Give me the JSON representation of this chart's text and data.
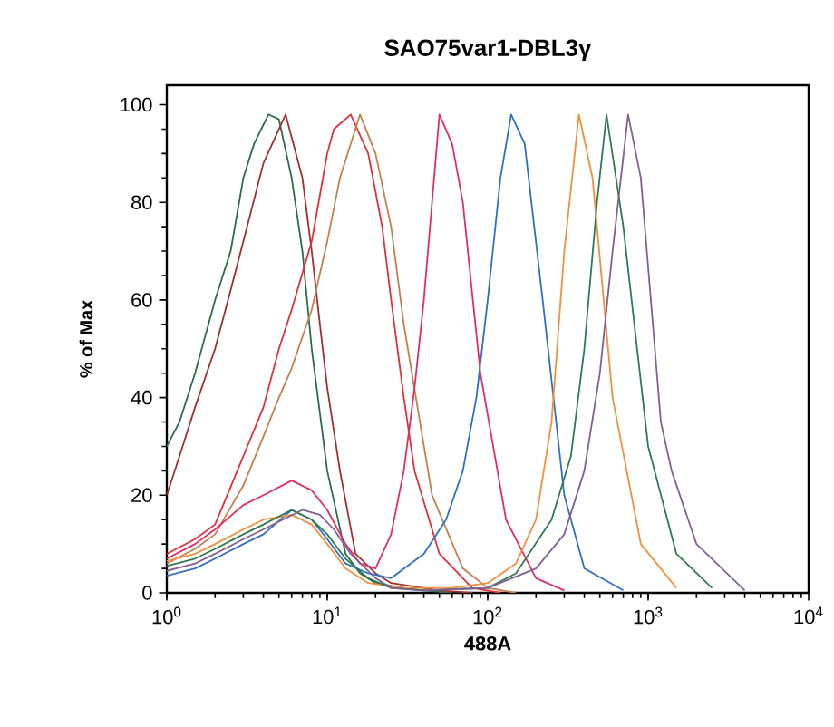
{
  "chart_data": {
    "type": "line",
    "title": "SAO75var1-DBL3γ",
    "xlabel": "488A",
    "ylabel": "% of Max",
    "log": "x",
    "grid": false,
    "marker": "none",
    "line_style": "solid",
    "xlim": [
      1,
      10000
    ],
    "ylim": [
      0,
      104
    ],
    "xticks": [
      {
        "value": 1,
        "label": "10$^{0}$"
      },
      {
        "value": 10,
        "label": "10$^{1}$"
      },
      {
        "value": 100,
        "label": "10$^{2}$"
      },
      {
        "value": 1000,
        "label": "10$^{3}$"
      },
      {
        "value": 10000,
        "label": "10$^{4}$"
      }
    ],
    "yticks": [
      0,
      20,
      40,
      60,
      80,
      100
    ],
    "series": [
      {
        "color": "#2e6b4a",
        "x": [
          1,
          1.2,
          1.5,
          2,
          2.5,
          3,
          3.5,
          4.3,
          5,
          6,
          7,
          8,
          10,
          13,
          16,
          20,
          30,
          40,
          60
        ],
        "values": [
          30,
          35,
          45,
          60,
          70,
          85,
          92,
          98,
          97,
          85,
          70,
          50,
          25,
          8,
          4,
          2,
          1,
          0.5,
          0
        ]
      },
      {
        "color": "#a03030",
        "x": [
          1,
          1.2,
          1.5,
          2,
          2.5,
          3,
          4,
          5.5,
          7,
          8,
          9,
          10,
          12,
          15,
          20,
          25,
          50,
          80
        ],
        "values": [
          20,
          28,
          38,
          50,
          62,
          72,
          88,
          98,
          85,
          70,
          55,
          42,
          25,
          8,
          4,
          2,
          0.5,
          0
        ]
      },
      {
        "color": "#e0303a",
        "x": [
          1,
          1.5,
          2,
          3,
          4,
          5,
          6,
          8,
          10,
          11,
          14,
          18,
          22,
          25,
          30,
          35,
          50,
          80,
          120
        ],
        "values": [
          8,
          11,
          14,
          28,
          38,
          50,
          58,
          72,
          90,
          95,
          98,
          90,
          75,
          60,
          40,
          25,
          8,
          1,
          0
        ]
      },
      {
        "color": "#c08050",
        "x": [
          1,
          1.5,
          2,
          3,
          4,
          5,
          6,
          8,
          10,
          12,
          16,
          20,
          25,
          30,
          45,
          70,
          100,
          150
        ],
        "values": [
          6,
          9,
          12,
          22,
          32,
          40,
          46,
          58,
          72,
          85,
          98,
          90,
          75,
          55,
          20,
          5,
          1,
          0
        ]
      },
      {
        "color": "#e03060",
        "x": [
          1,
          1.5,
          2,
          3,
          4,
          6,
          8,
          10,
          13,
          16,
          20,
          25,
          30,
          35,
          40,
          50,
          60,
          70,
          90,
          130,
          200,
          300
        ],
        "values": [
          7,
          10,
          13,
          18,
          20,
          23,
          21,
          17,
          10,
          6,
          5,
          12,
          25,
          42,
          60,
          98,
          92,
          80,
          45,
          15,
          3,
          0.5
        ]
      },
      {
        "color": "#3070c0",
        "x": [
          1,
          1.5,
          2,
          3,
          4,
          6,
          8,
          10,
          13,
          18,
          25,
          40,
          55,
          70,
          85,
          100,
          120,
          140,
          170,
          220,
          300,
          400,
          700
        ],
        "values": [
          3.5,
          5,
          7,
          10,
          12,
          17,
          15,
          11,
          6,
          4,
          3,
          8,
          15,
          25,
          40,
          60,
          85,
          98,
          92,
          60,
          20,
          5,
          0.5
        ]
      },
      {
        "color": "#f09040",
        "x": [
          1,
          1.5,
          2,
          3,
          4,
          6,
          8,
          10,
          13,
          18,
          30,
          60,
          100,
          150,
          200,
          250,
          300,
          370,
          450,
          600,
          900,
          1500
        ],
        "values": [
          6.5,
          8,
          10,
          13,
          15,
          16,
          14,
          10,
          5,
          2,
          1,
          1,
          2,
          6,
          15,
          35,
          70,
          98,
          85,
          40,
          10,
          1
        ]
      },
      {
        "color": "#2f7a4f",
        "x": [
          1,
          1.5,
          2,
          3,
          4,
          6,
          8,
          10,
          13,
          18,
          25,
          40,
          100,
          150,
          250,
          330,
          400,
          480,
          550,
          700,
          1000,
          1500,
          2500
        ],
        "values": [
          5.5,
          7,
          9,
          12,
          14,
          17,
          15,
          12,
          7,
          3,
          1,
          0.5,
          1,
          4,
          15,
          28,
          50,
          80,
          98,
          75,
          30,
          8,
          1
        ]
      },
      {
        "color": "#806090",
        "x": [
          1,
          1.5,
          2,
          3,
          4,
          7,
          9,
          11,
          14,
          20,
          25,
          40,
          100,
          200,
          300,
          400,
          500,
          600,
          750,
          900,
          1200,
          1400,
          2000,
          4000
        ],
        "values": [
          4.5,
          6,
          8,
          11,
          13,
          17,
          16,
          13,
          8,
          3,
          1,
          0.5,
          1,
          5,
          12,
          25,
          45,
          70,
          98,
          85,
          35,
          25,
          10,
          0.5
        ]
      }
    ]
  }
}
